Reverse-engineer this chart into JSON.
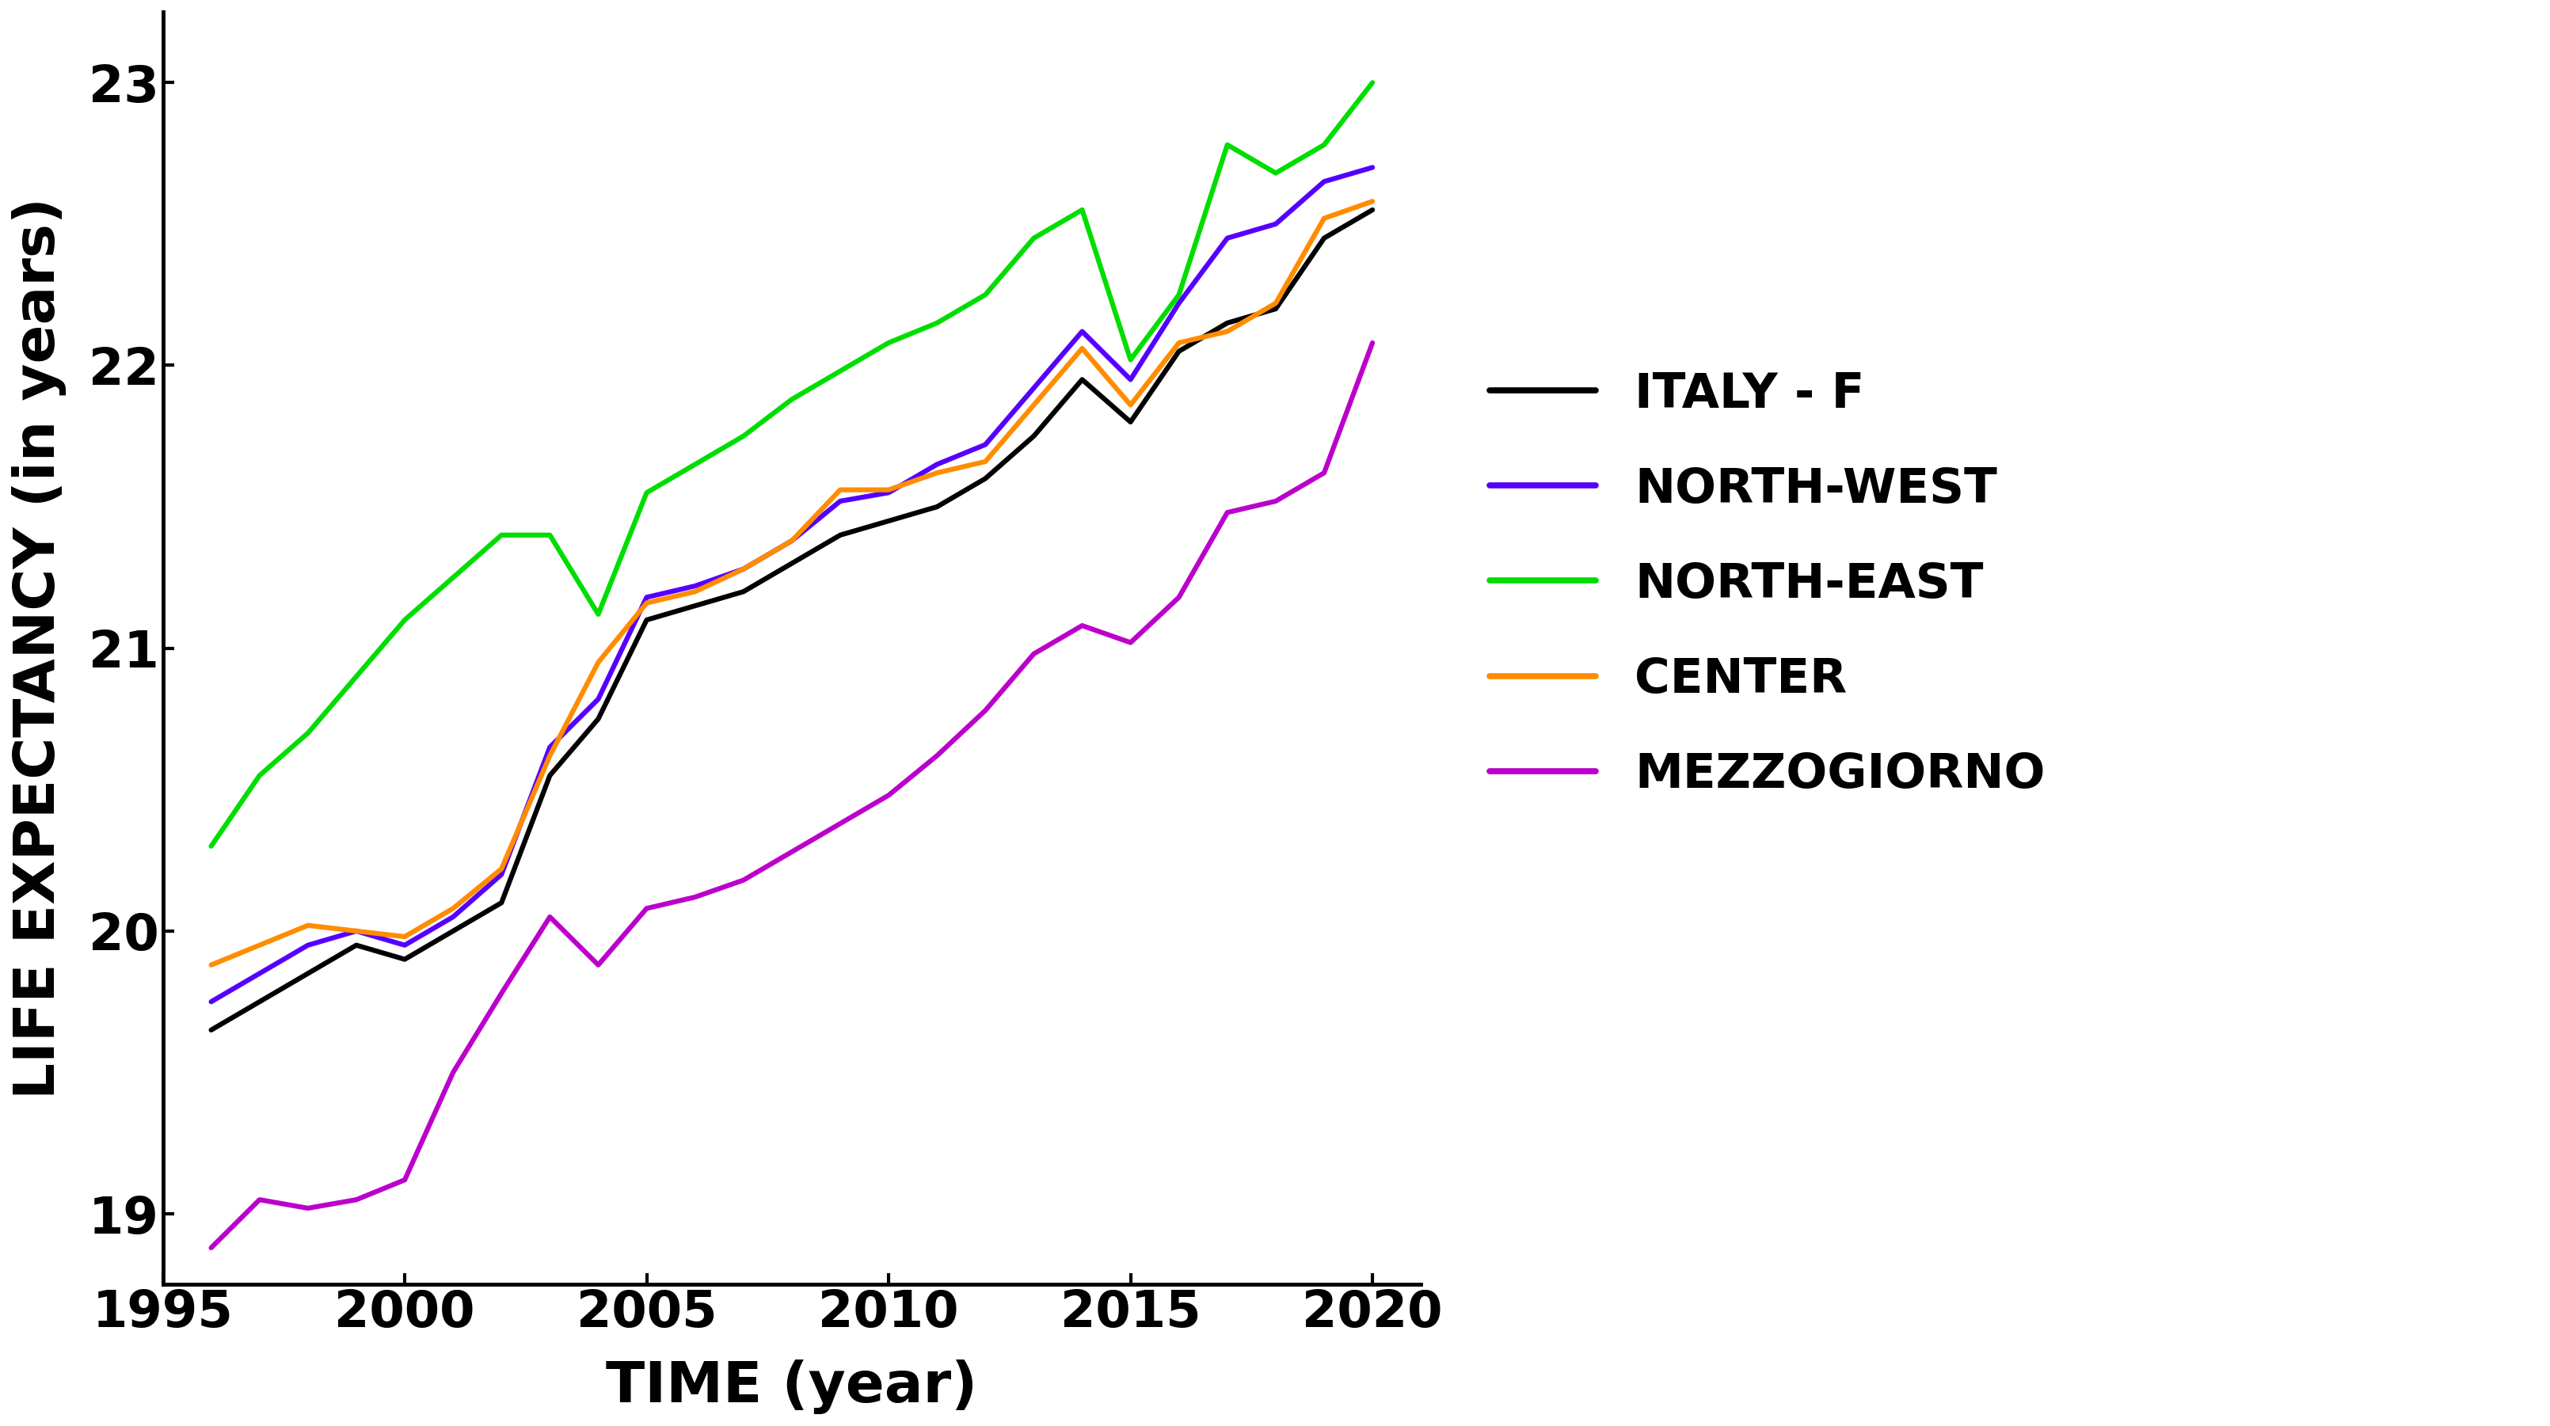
{
  "title": "",
  "xlabel": "TIME (year)",
  "ylabel": "LIFE EXPECTANCY (in years)",
  "xlim": [
    1995,
    2021
  ],
  "ylim": [
    18.75,
    23.25
  ],
  "yticks": [
    19,
    20,
    21,
    22,
    23
  ],
  "xticks": [
    1995,
    2000,
    2005,
    2010,
    2015,
    2020
  ],
  "background_color": "#ffffff",
  "line_width": 4.5,
  "series": {
    "ITALY - F": {
      "color": "#000000",
      "years": [
        1996,
        1997,
        1998,
        1999,
        2000,
        2001,
        2002,
        2003,
        2004,
        2005,
        2006,
        2007,
        2008,
        2009,
        2010,
        2011,
        2012,
        2013,
        2014,
        2015,
        2016,
        2017,
        2018,
        2019,
        2020
      ],
      "values": [
        19.65,
        19.75,
        19.85,
        19.95,
        19.9,
        20.0,
        20.1,
        20.55,
        20.75,
        21.1,
        21.15,
        21.2,
        21.3,
        21.4,
        21.45,
        21.5,
        21.6,
        21.75,
        21.95,
        21.8,
        22.05,
        22.15,
        22.2,
        22.45,
        22.55
      ]
    },
    "NORTH-WEST": {
      "color": "#5500ff",
      "years": [
        1996,
        1997,
        1998,
        1999,
        2000,
        2001,
        2002,
        2003,
        2004,
        2005,
        2006,
        2007,
        2008,
        2009,
        2010,
        2011,
        2012,
        2013,
        2014,
        2015,
        2016,
        2017,
        2018,
        2019,
        2020
      ],
      "values": [
        19.75,
        19.85,
        19.95,
        20.0,
        19.95,
        20.05,
        20.2,
        20.65,
        20.82,
        21.18,
        21.22,
        21.28,
        21.38,
        21.52,
        21.55,
        21.65,
        21.72,
        21.92,
        22.12,
        21.95,
        22.22,
        22.45,
        22.5,
        22.65,
        22.7
      ]
    },
    "NORTH-EAST": {
      "color": "#00dd00",
      "years": [
        1996,
        1997,
        1998,
        1999,
        2000,
        2001,
        2002,
        2003,
        2004,
        2005,
        2006,
        2007,
        2008,
        2009,
        2010,
        2011,
        2012,
        2013,
        2014,
        2015,
        2016,
        2017,
        2018,
        2019,
        2020
      ],
      "values": [
        20.3,
        20.55,
        20.7,
        20.9,
        21.1,
        21.25,
        21.4,
        21.4,
        21.12,
        21.55,
        21.65,
        21.75,
        21.88,
        21.98,
        22.08,
        22.15,
        22.25,
        22.45,
        22.55,
        22.02,
        22.25,
        22.78,
        22.68,
        22.78,
        23.0
      ]
    },
    "CENTER": {
      "color": "#ff8c00",
      "years": [
        1996,
        1997,
        1998,
        1999,
        2000,
        2001,
        2002,
        2003,
        2004,
        2005,
        2006,
        2007,
        2008,
        2009,
        2010,
        2011,
        2012,
        2013,
        2014,
        2015,
        2016,
        2017,
        2018,
        2019,
        2020
      ],
      "values": [
        19.88,
        19.95,
        20.02,
        20.0,
        19.98,
        20.08,
        20.22,
        20.62,
        20.95,
        21.16,
        21.2,
        21.28,
        21.38,
        21.56,
        21.56,
        21.62,
        21.66,
        21.86,
        22.06,
        21.86,
        22.08,
        22.12,
        22.22,
        22.52,
        22.58
      ]
    },
    "MEZZOGIORNO": {
      "color": "#bb00cc",
      "years": [
        1996,
        1997,
        1998,
        1999,
        2000,
        2001,
        2002,
        2003,
        2004,
        2005,
        2006,
        2007,
        2008,
        2009,
        2010,
        2011,
        2012,
        2013,
        2014,
        2015,
        2016,
        2017,
        2018,
        2019,
        2020
      ],
      "values": [
        18.88,
        19.05,
        19.02,
        19.05,
        19.12,
        19.5,
        19.78,
        20.05,
        19.88,
        20.08,
        20.12,
        20.18,
        20.28,
        20.38,
        20.48,
        20.62,
        20.78,
        20.98,
        21.08,
        21.02,
        21.18,
        21.48,
        21.52,
        21.62,
        22.08
      ]
    }
  }
}
